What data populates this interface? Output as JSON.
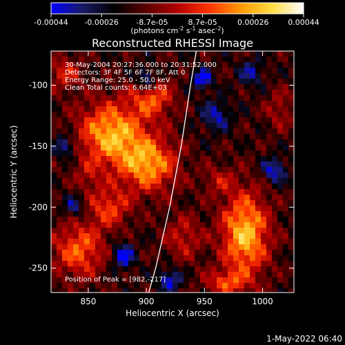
{
  "colorbar": {
    "ticks": [
      "-0.00044",
      "-0.00026",
      "-8.7e-05",
      "8.7e-05",
      "0.00026",
      "0.00044"
    ],
    "unit_main": "(photons cm",
    "unit_e1": "-2",
    "unit_mid": " s",
    "unit_e2": "-1",
    "unit_tail": " asec",
    "unit_e3": "-2",
    "unit_close": ")",
    "gradient": [
      "#0000ff",
      "#1a1a66",
      "#000000",
      "#5a0000",
      "#b20000",
      "#ff3300",
      "#ff9900",
      "#ffdd44",
      "#ffffff"
    ]
  },
  "chart_data": {
    "type": "heatmap",
    "title": "Reconstructed RHESSI Image",
    "xlabel": "Heliocentric X (arcsec)",
    "ylabel": "Heliocentric Y (arcsec)",
    "xlim": [
      818,
      1027
    ],
    "ylim": [
      -270,
      -72
    ],
    "xticks": [
      "850",
      "900",
      "950",
      "1000"
    ],
    "xtick_values": [
      850,
      900,
      950,
      1000
    ],
    "yticks": [
      "-100",
      "-150",
      "-200",
      "-250"
    ],
    "ytick_values": [
      -100,
      -150,
      -200,
      -250
    ],
    "value_range": [
      -0.00044,
      0.00044
    ],
    "info": [
      "30-May-2004 20:27:36.000 to 20:31:52.000",
      "Detectors: 3F 4F 5F 6F 7F 8F, Att 0",
      "Energy Range: 25.0 - 50.0 keV",
      "Clean     Total counts: 6.64E+03"
    ],
    "peak_text": "Position of Peak = [982,-217]",
    "peak": [
      982,
      -217
    ],
    "limb_curve": [
      [
        943,
        -72
      ],
      [
        938,
        -100
      ],
      [
        930,
        -150
      ],
      [
        920,
        -200
      ],
      [
        908,
        -250
      ],
      [
        902,
        -270
      ]
    ],
    "blobs": [
      {
        "x": 870,
        "y": -140,
        "sx": 28,
        "sy": 26,
        "a": 0.00042
      },
      {
        "x": 905,
        "y": -110,
        "sx": 18,
        "sy": 16,
        "a": 0.00028
      },
      {
        "x": 902,
        "y": -165,
        "sx": 24,
        "sy": 22,
        "a": 0.00038
      },
      {
        "x": 842,
        "y": -235,
        "sx": 22,
        "sy": 22,
        "a": 0.0003
      },
      {
        "x": 868,
        "y": -200,
        "sx": 18,
        "sy": 16,
        "a": 0.00025
      },
      {
        "x": 932,
        "y": -225,
        "sx": 16,
        "sy": 18,
        "a": 0.00018
      },
      {
        "x": 985,
        "y": -222,
        "sx": 20,
        "sy": 34,
        "a": 0.00044
      },
      {
        "x": 968,
        "y": -262,
        "sx": 18,
        "sy": 10,
        "a": 0.00024
      },
      {
        "x": 962,
        "y": -178,
        "sx": 14,
        "sy": 12,
        "a": 0.00014
      },
      {
        "x": 1015,
        "y": -120,
        "sx": 12,
        "sy": 16,
        "a": 0.00014
      },
      {
        "x": 830,
        "y": -90,
        "sx": 14,
        "sy": 14,
        "a": 0.0002
      },
      {
        "x": 850,
        "y": -175,
        "sx": 12,
        "sy": 12,
        "a": 0.00012
      },
      {
        "x": 948,
        "y": -95,
        "sx": 8,
        "sy": 8,
        "a": -0.0003
      },
      {
        "x": 900,
        "y": -95,
        "sx": 9,
        "sy": 9,
        "a": -0.00028
      },
      {
        "x": 830,
        "y": -150,
        "sx": 9,
        "sy": 9,
        "a": -0.00024
      },
      {
        "x": 880,
        "y": -240,
        "sx": 9,
        "sy": 10,
        "a": -0.0003
      },
      {
        "x": 920,
        "y": -260,
        "sx": 10,
        "sy": 9,
        "a": -0.00026
      },
      {
        "x": 960,
        "y": -125,
        "sx": 12,
        "sy": 12,
        "a": -0.00022
      },
      {
        "x": 1010,
        "y": -170,
        "sx": 10,
        "sy": 10,
        "a": -0.00026
      },
      {
        "x": 838,
        "y": -200,
        "sx": 9,
        "sy": 9,
        "a": -0.0002
      },
      {
        "x": 990,
        "y": -90,
        "sx": 10,
        "sy": 10,
        "a": -0.0002
      }
    ]
  },
  "footer": {
    "date": "1-May-2022 06:40"
  }
}
